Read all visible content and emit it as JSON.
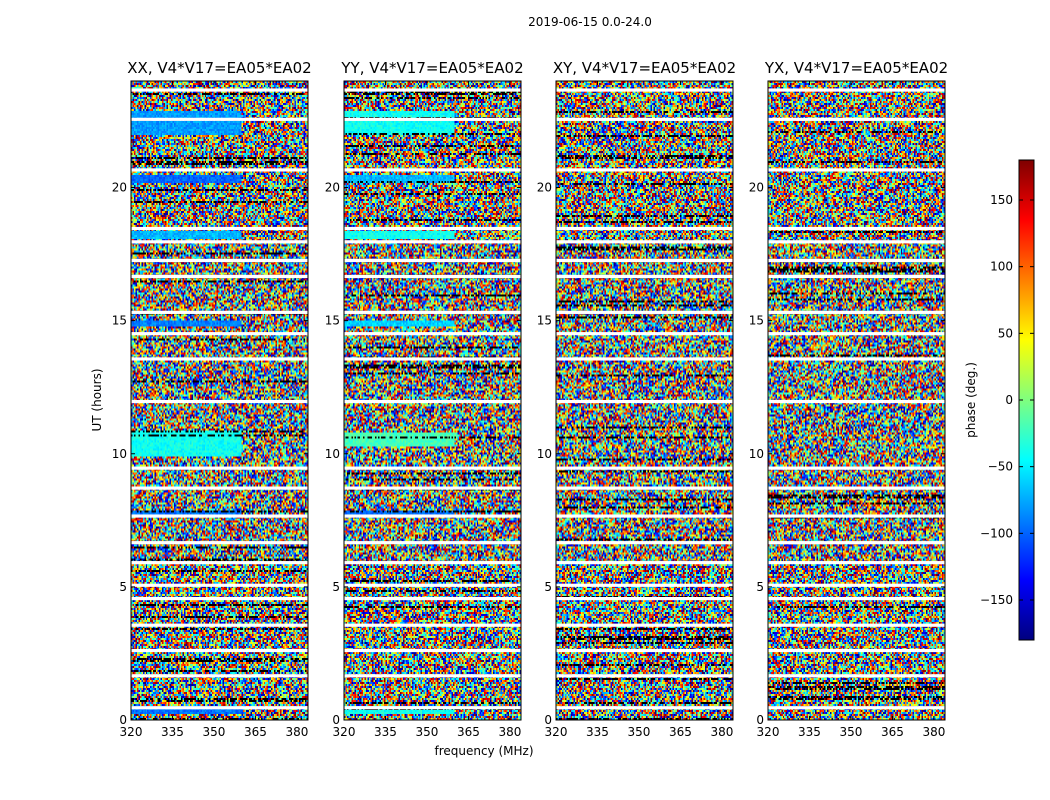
{
  "figure": {
    "suptitle": "2019-06-15 0.0-24.0",
    "xlabel": "frequency (MHz)",
    "ylabel": "UT (hours)",
    "colorbar_label": "phase (deg.)",
    "colormap": [
      "#00007f",
      "#0000ff",
      "#007fff",
      "#00ffff",
      "#7fff7f",
      "#ffff00",
      "#ff7f00",
      "#ff0000",
      "#7f0000"
    ]
  },
  "chart_data": [
    {
      "type": "heatmap",
      "title": "XX, V4*V17=EA05*EA02",
      "x_range": [
        320,
        384
      ],
      "y_range": [
        0,
        24
      ],
      "xticks": [
        320,
        335,
        350,
        365,
        380
      ],
      "yticks": [
        0,
        5,
        10,
        15,
        20
      ],
      "xlabel": "",
      "ylabel": "UT (hours)",
      "value_range": [
        -180,
        180
      ],
      "units": "phase (deg.)",
      "flagged_rows_utc": [
        0.4,
        1.6,
        2.55,
        3.5,
        4.5,
        5.0,
        5.85,
        6.6,
        7.6,
        8.65,
        9.4,
        11.9,
        13.5,
        14.45,
        15.25,
        16.6,
        17.2,
        17.9,
        18.4,
        20.6,
        22.5,
        23.6
      ],
      "colored_bands_utc": [
        [
          0.25,
          0.55,
          -95
        ],
        [
          7.65,
          7.85,
          -95
        ],
        [
          9.9,
          10.9,
          -40
        ],
        [
          14.8,
          15.0,
          -90
        ],
        [
          18.1,
          18.4,
          -70
        ],
        [
          20.2,
          20.5,
          -100
        ],
        [
          22.0,
          22.9,
          -80
        ]
      ]
    },
    {
      "type": "heatmap",
      "title": "YY, V4*V17=EA05*EA02",
      "x_range": [
        320,
        384
      ],
      "y_range": [
        0,
        24
      ],
      "xticks": [
        320,
        335,
        350,
        365,
        380
      ],
      "yticks": [
        0,
        5,
        10,
        15,
        20
      ],
      "xlabel": "frequency (MHz)",
      "ylabel": "",
      "value_range": [
        -180,
        180
      ],
      "units": "phase (deg.)",
      "flagged_rows_utc": [
        0.4,
        1.6,
        2.55,
        3.5,
        4.5,
        5.0,
        5.85,
        6.6,
        7.6,
        8.65,
        9.4,
        11.9,
        13.5,
        14.45,
        15.25,
        16.6,
        17.2,
        17.9,
        18.4,
        20.6,
        22.5,
        23.6
      ],
      "colored_bands_utc": [
        [
          0.25,
          0.55,
          -40
        ],
        [
          7.65,
          7.85,
          -95
        ],
        [
          10.3,
          10.8,
          -20
        ],
        [
          14.8,
          15.0,
          -60
        ],
        [
          18.1,
          18.4,
          -40
        ],
        [
          20.2,
          20.5,
          -70
        ],
        [
          22.0,
          22.9,
          -40
        ]
      ]
    },
    {
      "type": "heatmap",
      "title": "XY, V4*V17=EA05*EA02",
      "x_range": [
        320,
        384
      ],
      "y_range": [
        0,
        24
      ],
      "xticks": [
        320,
        335,
        350,
        365,
        380
      ],
      "yticks": [
        0,
        5,
        10,
        15,
        20
      ],
      "xlabel": "",
      "ylabel": "",
      "value_range": [
        -180,
        180
      ],
      "units": "phase (deg.)",
      "flagged_rows_utc": [
        0.4,
        1.6,
        2.55,
        3.5,
        4.5,
        5.0,
        5.85,
        6.6,
        7.6,
        8.65,
        9.4,
        11.9,
        13.5,
        14.45,
        15.25,
        16.6,
        17.2,
        17.9,
        18.4,
        20.6,
        22.5,
        23.6
      ],
      "colored_bands_utc": []
    },
    {
      "type": "heatmap",
      "title": "YX, V4*V17=EA05*EA02",
      "x_range": [
        320,
        384
      ],
      "y_range": [
        0,
        24
      ],
      "xticks": [
        320,
        335,
        350,
        365,
        380
      ],
      "yticks": [
        0,
        5,
        10,
        15,
        20
      ],
      "xlabel": "",
      "ylabel": "",
      "value_range": [
        -180,
        180
      ],
      "units": "phase (deg.)",
      "flagged_rows_utc": [
        0.4,
        1.6,
        2.55,
        3.5,
        4.5,
        5.0,
        5.85,
        6.6,
        7.6,
        8.65,
        9.4,
        11.9,
        13.5,
        14.45,
        15.25,
        16.6,
        17.2,
        17.9,
        18.4,
        20.6,
        22.5,
        23.6
      ],
      "colored_bands_utc": []
    },
    {
      "type": "colorbar",
      "label": "phase (deg.)",
      "range": [
        -180,
        180
      ],
      "ticks": [
        -150,
        -100,
        -50,
        0,
        50,
        100,
        150
      ],
      "tick_labels": [
        "−150",
        "−100",
        "−50",
        "0",
        "50",
        "100",
        "150"
      ]
    }
  ]
}
